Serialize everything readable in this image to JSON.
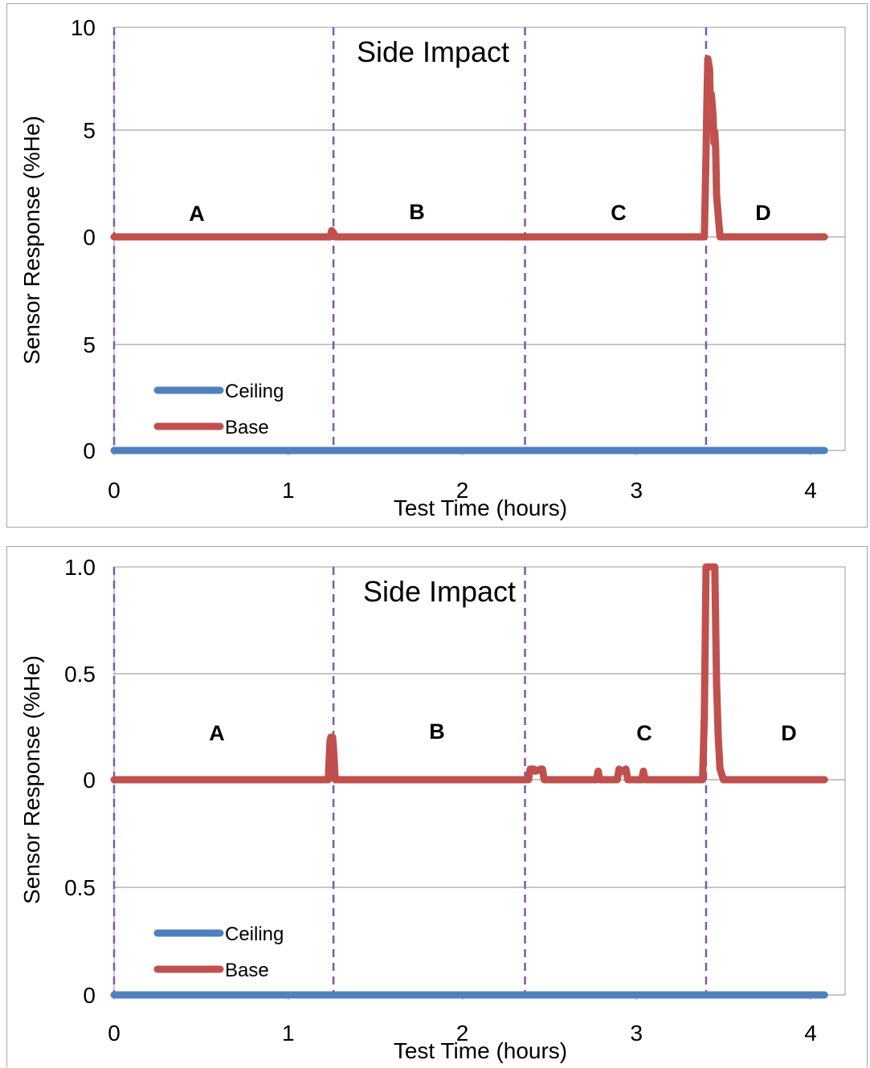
{
  "chart_data": [
    {
      "type": "line",
      "title": "Side Impact",
      "xlabel": "Test Time (hours)",
      "ylabel": "Sensor Response (%He)",
      "xlim": [
        0,
        4.2
      ],
      "x_ticks": [
        "0",
        "1",
        "2",
        "3",
        "4"
      ],
      "y_tick_labels_top": [
        "10",
        "5",
        "0"
      ],
      "y_tick_labels_bottom": [
        "5",
        "0"
      ],
      "phase_labels": [
        "A",
        "B",
        "C",
        "D"
      ],
      "phase_boundaries": [
        0,
        1.26,
        2.36,
        3.4
      ],
      "legend": [
        "Ceiling",
        "Base"
      ],
      "legend_position": "bottom-left",
      "grid": true,
      "colors": {
        "Ceiling": "#4f81bd",
        "Base": "#c0504d",
        "boundary": "#7f5a9e"
      },
      "series": [
        {
          "name": "Ceiling",
          "panel": "lower",
          "x": [
            0,
            4.08
          ],
          "y": [
            0,
            0
          ]
        },
        {
          "name": "Base",
          "panel": "upper",
          "x": [
            0,
            1.24,
            1.25,
            1.26,
            1.27,
            3.39,
            3.4,
            3.405,
            3.41,
            3.42,
            3.425,
            3.43,
            3.44,
            3.445,
            3.45,
            3.455,
            3.46,
            3.47,
            3.48,
            4.08
          ],
          "y": [
            0,
            0,
            0.3,
            0.2,
            0,
            0,
            4.0,
            6.5,
            8.5,
            8.0,
            6.0,
            6.8,
            5.8,
            4.5,
            5.0,
            4.2,
            2.0,
            1.0,
            0,
            0
          ]
        }
      ]
    },
    {
      "type": "line",
      "title": "Side Impact",
      "xlabel": "Test Time (hours)",
      "ylabel": "Sensor Response (%He)",
      "xlim": [
        0,
        4.2
      ],
      "x_ticks": [
        "0",
        "1",
        "2",
        "3",
        "4"
      ],
      "y_tick_labels_top": [
        "1.0",
        "0.5",
        "0"
      ],
      "y_tick_labels_bottom": [
        "0.5",
        "0"
      ],
      "phase_labels": [
        "A",
        "B",
        "C",
        "D"
      ],
      "phase_boundaries": [
        0,
        1.26,
        2.36,
        3.4
      ],
      "legend": [
        "Ceiling",
        "Base"
      ],
      "legend_position": "bottom-left",
      "grid": true,
      "colors": {
        "Ceiling": "#4f81bd",
        "Base": "#c0504d",
        "boundary": "#7f5a9e"
      },
      "series": [
        {
          "name": "Ceiling",
          "panel": "lower",
          "x": [
            0,
            4.08
          ],
          "y": [
            0,
            0
          ]
        },
        {
          "name": "Base",
          "panel": "upper",
          "x": [
            0,
            1.23,
            1.24,
            1.245,
            1.255,
            1.26,
            1.27,
            2.38,
            2.39,
            2.41,
            2.42,
            2.45,
            2.46,
            2.47,
            2.48,
            2.77,
            2.78,
            2.79,
            2.89,
            2.9,
            2.92,
            2.94,
            2.95,
            3.03,
            3.04,
            3.05,
            3.38,
            3.39,
            3.4,
            3.42,
            3.45,
            3.46,
            3.47,
            3.48,
            3.5,
            4.08
          ],
          "y": [
            0,
            0,
            0.18,
            0.2,
            0.2,
            0.15,
            0,
            0,
            0.05,
            0.05,
            0.04,
            0.05,
            0.05,
            0,
            0,
            0,
            0.04,
            0,
            0,
            0.05,
            0.04,
            0.05,
            0,
            0,
            0.04,
            0,
            0,
            0.3,
            1.0,
            1.0,
            1.0,
            0.45,
            0.2,
            0.05,
            0,
            0
          ]
        }
      ]
    }
  ]
}
